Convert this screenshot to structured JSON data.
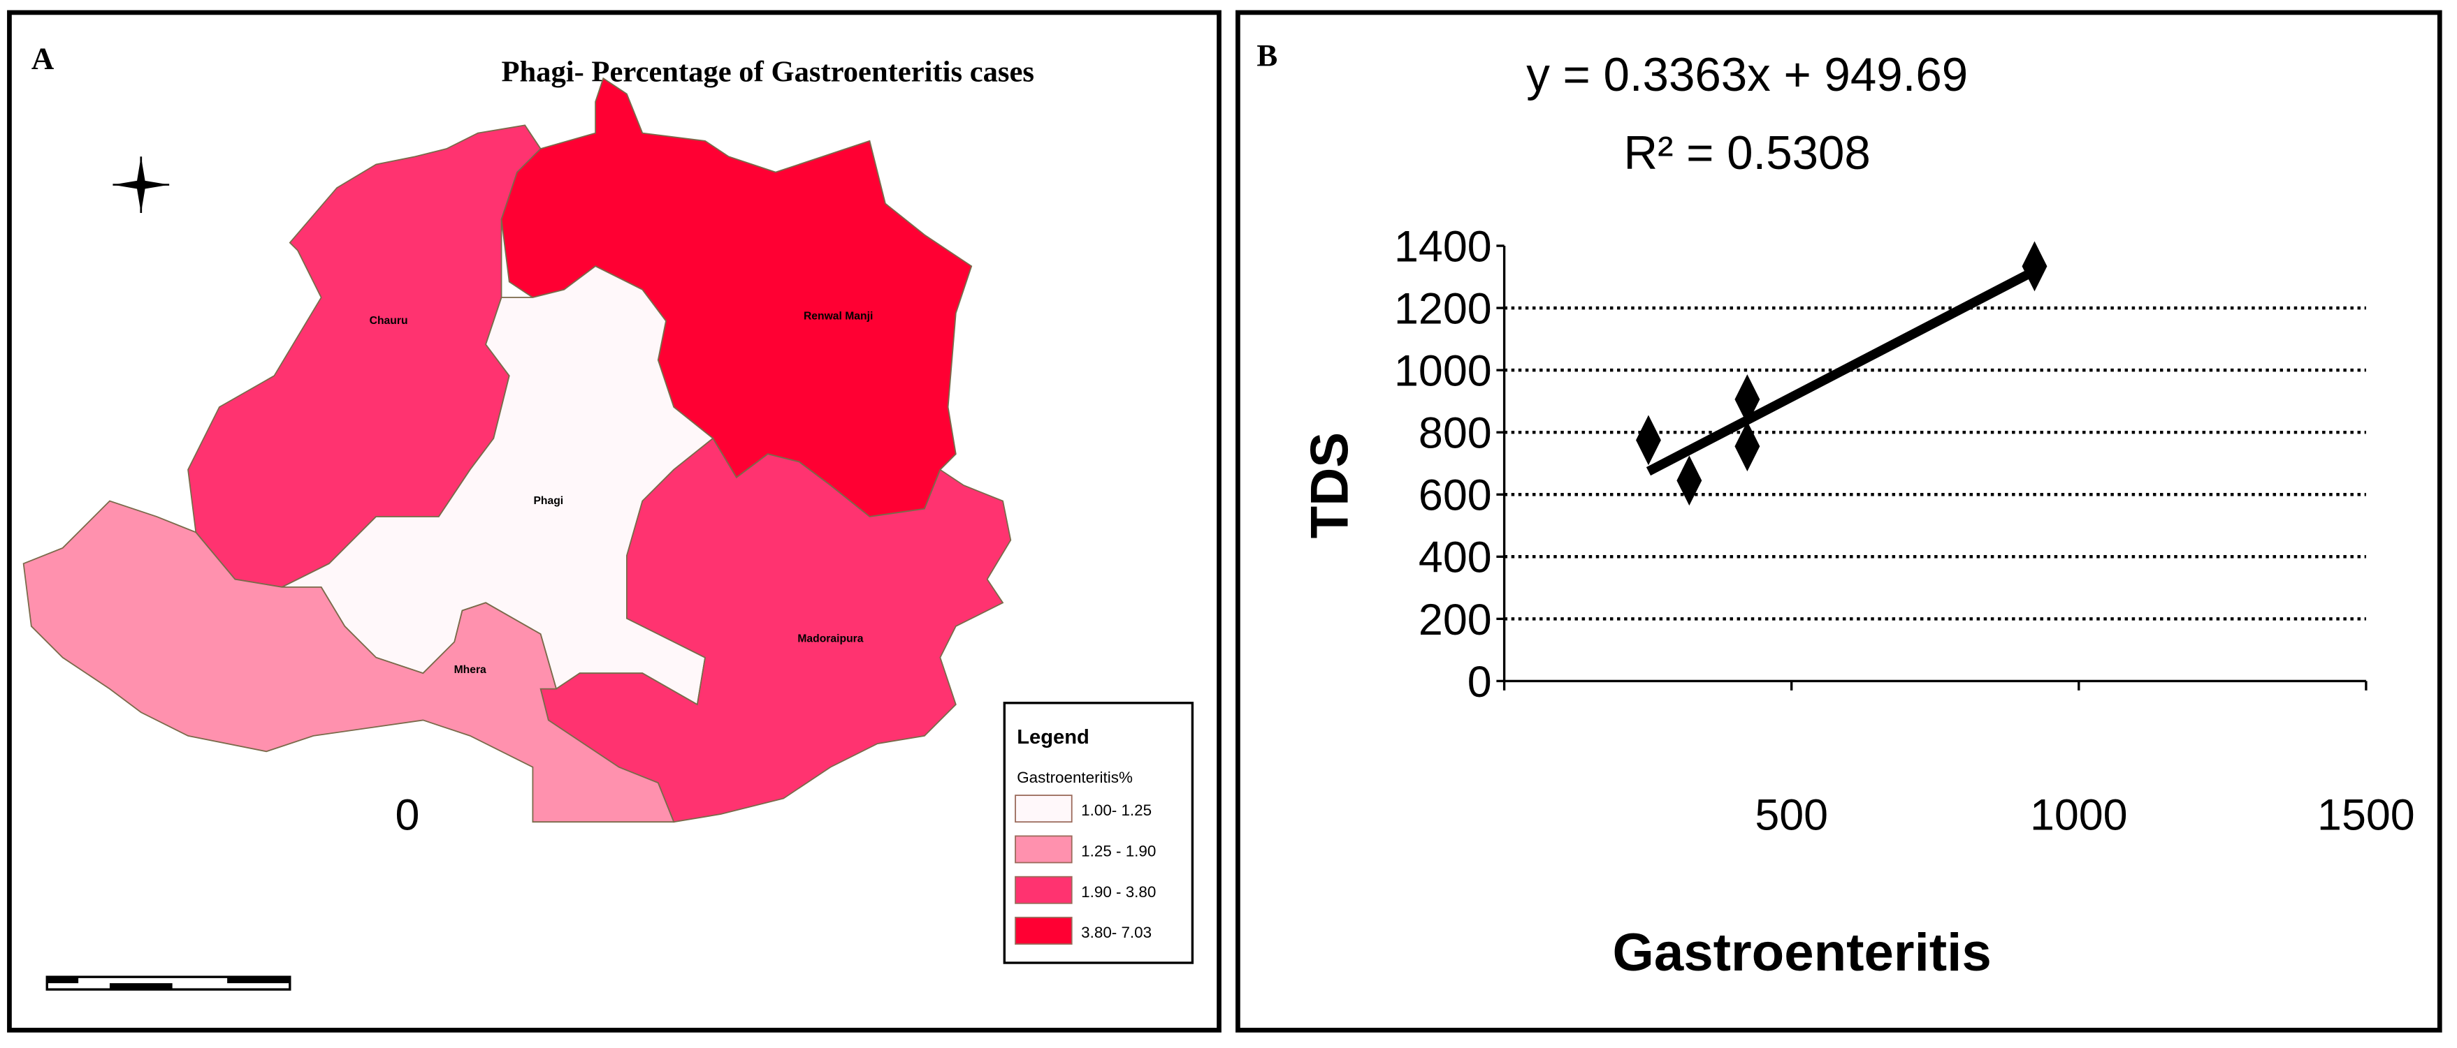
{
  "panel_a": {
    "letter": "A",
    "title": "Phagi- Percentage of Gastroenteritis cases",
    "regions": [
      {
        "name": "Chauru",
        "color": "#ff3370"
      },
      {
        "name": "Renwal Manji",
        "color": "#ff0033"
      },
      {
        "name": "Phagi",
        "color": "#fff8fa"
      },
      {
        "name": "Madoraipura",
        "color": "#ff3370"
      },
      {
        "name": "Mhera",
        "color": "#ff91ae"
      }
    ],
    "legend": {
      "title": "Legend",
      "subtitle": "Gastroenteritis%",
      "items": [
        {
          "label": "1.00- 1.25",
          "color": "#fff8fa"
        },
        {
          "label": "1.25 - 1.90",
          "color": "#ff91ae"
        },
        {
          "label": "1.90 - 3.80",
          "color": "#ff3370"
        },
        {
          "label": "3.80- 7.03",
          "color": "#ff0033"
        }
      ]
    },
    "icons": [
      "north-arrow-compass-icon",
      "scale-bar"
    ]
  },
  "chart_data": {
    "type": "scatter",
    "panel_letter": "B",
    "equation": "y = 0.3363x + 949.69",
    "r_squared": "R² = 0.5308",
    "xlabel": "Gastroenteritis",
    "ylabel": "TDS",
    "xlim": [
      0,
      1500
    ],
    "ylim": [
      0,
      1400
    ],
    "xticks": [
      "0",
      "500",
      "1000",
      "1500"
    ],
    "yticks": [
      "0",
      "200",
      "400",
      "600",
      "800",
      "1000",
      "1200",
      "1400"
    ],
    "grid": "horizontal dotted",
    "marker": "diamond",
    "trendline": "linear",
    "points": [
      {
        "x": 251,
        "y": 775
      },
      {
        "x": 322,
        "y": 645
      },
      {
        "x": 423,
        "y": 906
      },
      {
        "x": 423,
        "y": 755
      },
      {
        "x": 923,
        "y": 1334
      }
    ]
  }
}
